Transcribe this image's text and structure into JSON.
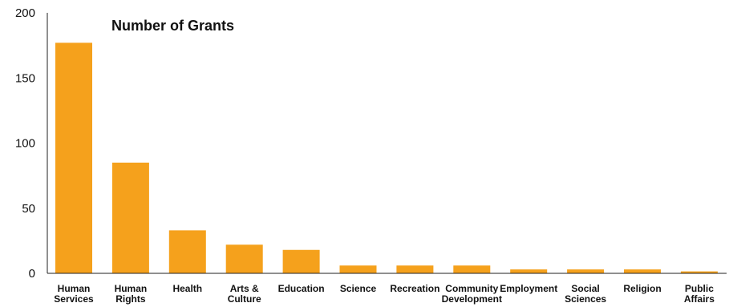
{
  "chart_data": {
    "type": "bar",
    "title": "Number of Grants",
    "xlabel": "",
    "ylabel": "",
    "ylim": [
      0,
      200
    ],
    "yticks": [
      0,
      50,
      100,
      150,
      200
    ],
    "grid": false,
    "bar_color": "#F5A11C",
    "axis_color": "#222222",
    "categories": [
      [
        "Human",
        "Services"
      ],
      [
        "Human",
        "Rights"
      ],
      [
        "Health"
      ],
      [
        "Arts &",
        "Culture"
      ],
      [
        "Education"
      ],
      [
        "Science"
      ],
      [
        "Recreation"
      ],
      [
        "Community",
        "Development"
      ],
      [
        "Employment"
      ],
      [
        "Social",
        "Sciences"
      ],
      [
        "Religion"
      ],
      [
        "Public",
        "Affairs"
      ]
    ],
    "values": [
      177,
      85,
      33,
      22,
      18,
      6,
      6,
      6,
      3,
      3,
      3,
      1.5
    ]
  }
}
